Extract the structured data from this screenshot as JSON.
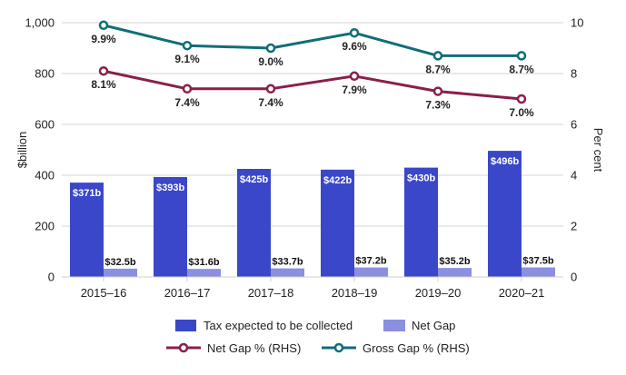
{
  "chart_data": {
    "type": "bar",
    "title": "",
    "categories": [
      "2015–16",
      "2016–17",
      "2017–18",
      "2018–19",
      "2019–20",
      "2020–21"
    ],
    "series": [
      {
        "name": "Tax expected to be collected",
        "kind": "bar",
        "axis": "left",
        "color": "#3b47c9",
        "values": [
          371,
          393,
          425,
          422,
          430,
          496
        ],
        "labels": [
          "$371b",
          "$393b",
          "$425b",
          "$422b",
          "$430b",
          "$496b"
        ]
      },
      {
        "name": "Net Gap",
        "kind": "bar",
        "axis": "left",
        "color": "#8b8fe0",
        "values": [
          32.5,
          31.6,
          33.7,
          37.2,
          35.2,
          37.5
        ],
        "labels": [
          "$32.5b",
          "$31.6b",
          "$33.7b",
          "$37.2b",
          "$35.2b",
          "$37.5b"
        ]
      },
      {
        "name": "Net Gap % (RHS)",
        "kind": "line",
        "axis": "right",
        "color": "#8a1f4a",
        "values": [
          8.1,
          7.4,
          7.4,
          7.9,
          7.3,
          7.0
        ],
        "labels": [
          "8.1%",
          "7.4%",
          "7.4%",
          "7.9%",
          "7.3%",
          "7.0%"
        ]
      },
      {
        "name": "Gross Gap % (RHS)",
        "kind": "line",
        "axis": "right",
        "color": "#0f6e78",
        "values": [
          9.9,
          9.1,
          9.0,
          9.6,
          8.7,
          8.7
        ],
        "labels": [
          "9.9%",
          "9.1%",
          "9.0%",
          "9.6%",
          "8.7%",
          "8.7%"
        ]
      }
    ],
    "ylabel": "$billion",
    "ylim": [
      0,
      1000
    ],
    "yticks": [
      "0",
      "200",
      "400",
      "600",
      "800",
      "1,000"
    ],
    "yticks_values": [
      0,
      200,
      400,
      600,
      800,
      1000
    ],
    "y2label": "Per cent",
    "y2lim": [
      0,
      10
    ],
    "y2ticks": [
      "0",
      "2",
      "4",
      "6",
      "8",
      "10"
    ],
    "y2ticks_values": [
      0,
      2,
      4,
      6,
      8,
      10
    ],
    "xlabel": "",
    "grid": true,
    "legend_position": "bottom"
  }
}
